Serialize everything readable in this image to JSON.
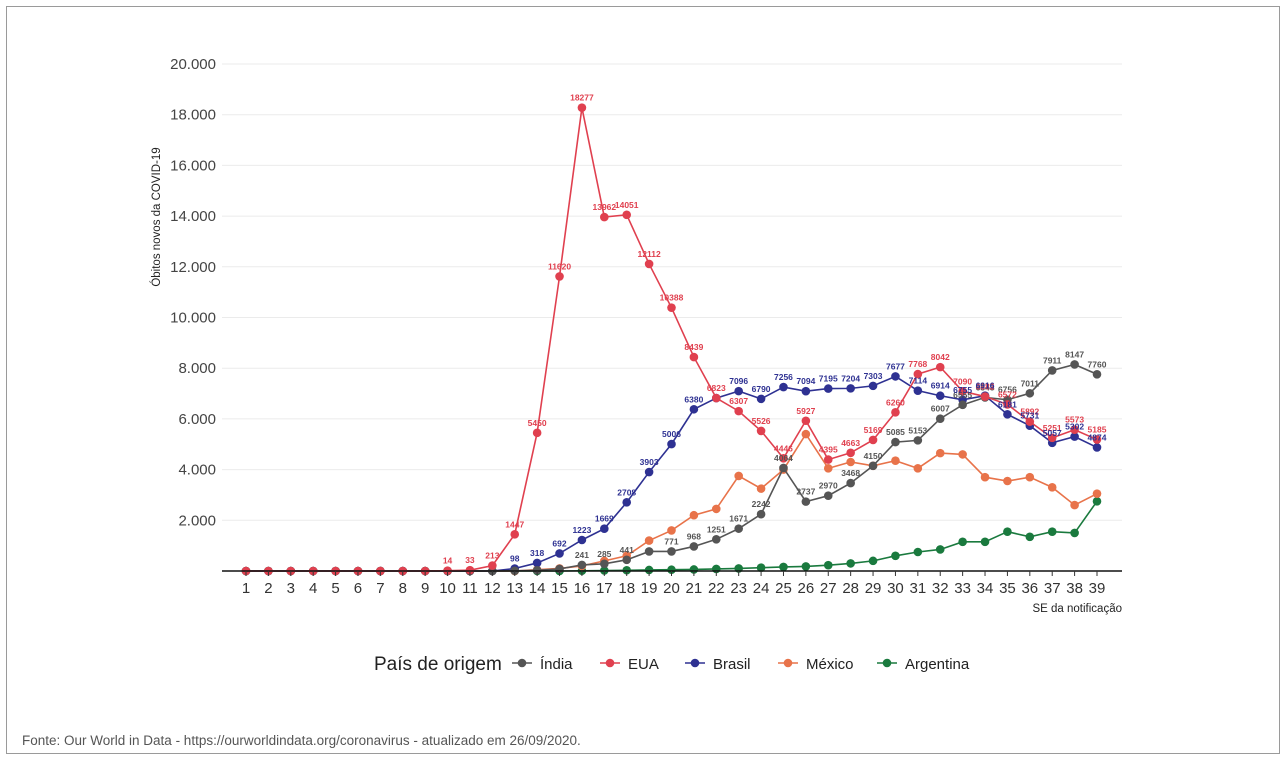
{
  "chart_data": {
    "type": "line",
    "title": "",
    "xlabel": "SE da notificação",
    "ylabel": "Óbitos novos da COVID-19",
    "ylim": [
      0,
      20000
    ],
    "y_ticks": [
      2000,
      4000,
      6000,
      8000,
      10000,
      12000,
      14000,
      16000,
      18000,
      20000
    ],
    "y_tick_labels": [
      "2.000",
      "4.000",
      "6.000",
      "8.000",
      "10.000",
      "12.000",
      "14.000",
      "16.000",
      "18.000",
      "20.000"
    ],
    "x": [
      1,
      2,
      3,
      4,
      5,
      6,
      7,
      8,
      9,
      10,
      11,
      12,
      13,
      14,
      15,
      16,
      17,
      18,
      19,
      20,
      21,
      22,
      23,
      24,
      25,
      26,
      27,
      28,
      29,
      30,
      31,
      32,
      33,
      34,
      35,
      36,
      37,
      38,
      39
    ],
    "x_tick_labels": [
      "1",
      "2",
      "3",
      "4",
      "5",
      "6",
      "7",
      "8",
      "9",
      "10",
      "11",
      "12",
      "13",
      "14",
      "15",
      "16",
      "17",
      "18",
      "19",
      "20",
      "21",
      "22",
      "23",
      "24",
      "25",
      "26",
      "27",
      "28",
      "29",
      "30",
      "31",
      "32",
      "33",
      "34",
      "35",
      "36",
      "37",
      "38",
      "39"
    ],
    "grid": true,
    "legend": {
      "title": "País de origem",
      "position": "bottom"
    },
    "series": [
      {
        "name": "Índia",
        "color": "#555555",
        "values": [
          0,
          0,
          0,
          0,
          0,
          0,
          0,
          0,
          0,
          0,
          0,
          0,
          10,
          30,
          80,
          241,
          285,
          441,
          771,
          771,
          968,
          1251,
          1671,
          2242,
          4064,
          2737,
          2970,
          3468,
          4150,
          5085,
          5153,
          6007,
          6555,
          6848,
          6756,
          7011,
          7911,
          8147,
          7760
        ],
        "labels": [
          null,
          null,
          null,
          null,
          null,
          null,
          null,
          null,
          null,
          null,
          null,
          null,
          null,
          null,
          null,
          "241",
          "285",
          "441",
          null,
          "771",
          "968",
          "1251",
          "1671",
          "2242",
          "4064",
          "2737",
          "2970",
          "3468",
          "4150",
          "5085",
          "5153",
          "6007",
          "6555",
          "6848",
          "6756",
          "7011",
          "7911",
          "8147",
          "7760"
        ]
      },
      {
        "name": "EUA",
        "color": "#e0404f",
        "values": [
          0,
          0,
          0,
          0,
          0,
          0,
          0,
          0,
          0,
          14,
          33,
          213,
          1447,
          5450,
          11620,
          18277,
          13962,
          14051,
          12112,
          10388,
          8439,
          6823,
          6307,
          5526,
          4446,
          5927,
          4395,
          4663,
          5169,
          6260,
          7768,
          8042,
          7090,
          6882,
          6572,
          5892,
          5251,
          5573,
          5185
        ],
        "labels": [
          null,
          null,
          null,
          null,
          null,
          null,
          null,
          null,
          null,
          "14",
          "33",
          "213",
          "1447",
          "5450",
          "11620",
          "18277",
          "13962",
          "14051",
          "12112",
          "10388",
          "8439",
          "6823",
          "6307",
          "5526",
          "4446",
          "5927",
          "4395",
          "4663",
          "5169",
          "6260",
          "7768",
          "8042",
          "7090",
          "6882",
          "6572",
          "5892",
          "5251",
          "5573",
          "5185"
        ]
      },
      {
        "name": "Brasil",
        "color": "#2e3192",
        "values": [
          0,
          0,
          0,
          0,
          0,
          0,
          0,
          0,
          0,
          0,
          0,
          0,
          98,
          318,
          692,
          1223,
          1669,
          2708,
          3903,
          5006,
          6380,
          6821,
          7096,
          6790,
          7256,
          7094,
          7195,
          7204,
          7303,
          7677,
          7114,
          6914,
          6755,
          6916,
          6181,
          5731,
          5057,
          5302,
          4874
        ],
        "labels": [
          null,
          null,
          null,
          null,
          null,
          null,
          null,
          null,
          null,
          null,
          null,
          null,
          "98",
          "318",
          "692",
          "1223",
          "1669",
          "2708",
          "3903",
          "5006",
          "6380",
          null,
          "7096",
          "6790",
          "7256",
          "7094",
          "7195",
          "7204",
          "7303",
          "7677",
          "7114",
          "6914",
          "6755",
          "6916",
          "6181",
          "5731",
          "5057",
          "5302",
          "4874"
        ]
      },
      {
        "name": "México",
        "color": "#e8734a",
        "values": [
          0,
          0,
          0,
          0,
          0,
          0,
          0,
          0,
          0,
          0,
          0,
          0,
          0,
          50,
          100,
          200,
          400,
          600,
          1200,
          1600,
          2200,
          2450,
          3750,
          3250,
          4000,
          5400,
          4050,
          4300,
          4150,
          4350,
          4050,
          4650,
          4600,
          3700,
          3550,
          3700,
          3300,
          2600,
          3050
        ],
        "labels": [
          null,
          null,
          null,
          null,
          null,
          null,
          null,
          null,
          null,
          null,
          null,
          null,
          null,
          null,
          null,
          null,
          null,
          null,
          null,
          null,
          null,
          null,
          null,
          null,
          null,
          null,
          null,
          null,
          null,
          null,
          null,
          null,
          null,
          null,
          null,
          null,
          null,
          null,
          null
        ]
      },
      {
        "name": "Argentina",
        "color": "#1a7a3e",
        "values": [
          0,
          0,
          0,
          0,
          0,
          0,
          0,
          0,
          0,
          0,
          0,
          0,
          0,
          0,
          0,
          10,
          20,
          30,
          40,
          50,
          60,
          80,
          100,
          130,
          160,
          180,
          230,
          300,
          400,
          600,
          750,
          850,
          1150,
          1150,
          1550,
          1350,
          1550,
          1500,
          2750
        ],
        "labels": [
          null,
          null,
          null,
          null,
          null,
          null,
          null,
          null,
          null,
          null,
          null,
          null,
          null,
          null,
          null,
          null,
          null,
          null,
          null,
          null,
          null,
          null,
          null,
          null,
          null,
          null,
          null,
          null,
          null,
          null,
          null,
          null,
          null,
          null,
          null,
          null,
          null,
          null,
          null
        ]
      }
    ]
  },
  "footer": {
    "source_text": "Fonte: Our World in Data - https://ourworldindata.org/coronavirus - atualizado em 26/09/2020."
  }
}
